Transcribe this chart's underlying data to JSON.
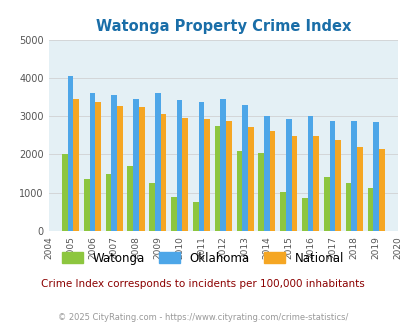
{
  "title": "Watonga Property Crime Index",
  "plot_years": [
    2005,
    2006,
    2007,
    2008,
    2009,
    2010,
    2011,
    2012,
    2013,
    2014,
    2015,
    2016,
    2017,
    2018,
    2019
  ],
  "watonga": [
    2000,
    1350,
    1500,
    1700,
    1250,
    900,
    750,
    2750,
    2100,
    2050,
    1020,
    870,
    1420,
    1250,
    1130
  ],
  "oklahoma": [
    4050,
    3600,
    3550,
    3450,
    3600,
    3430,
    3370,
    3450,
    3300,
    3000,
    2920,
    3000,
    2880,
    2870,
    2840
  ],
  "national": [
    3450,
    3370,
    3260,
    3230,
    3050,
    2960,
    2920,
    2870,
    2720,
    2610,
    2490,
    2470,
    2370,
    2200,
    2150
  ],
  "watonga_color": "#8dc63f",
  "oklahoma_color": "#4da6e8",
  "national_color": "#f5a623",
  "bg_color": "#e4f0f5",
  "ylim": [
    0,
    5000
  ],
  "yticks": [
    0,
    1000,
    2000,
    3000,
    4000,
    5000
  ],
  "xtick_labels": [
    "2004",
    "2005",
    "2006",
    "2007",
    "2008",
    "2009",
    "2010",
    "2011",
    "2012",
    "2013",
    "2014",
    "2015",
    "2016",
    "2017",
    "2018",
    "2019",
    "2020"
  ],
  "note": "Crime Index corresponds to incidents per 100,000 inhabitants",
  "copyright": "© 2025 CityRating.com - https://www.cityrating.com/crime-statistics/",
  "note_color": "#8b0000",
  "copyright_color": "#999999",
  "title_color": "#1a6ea8"
}
